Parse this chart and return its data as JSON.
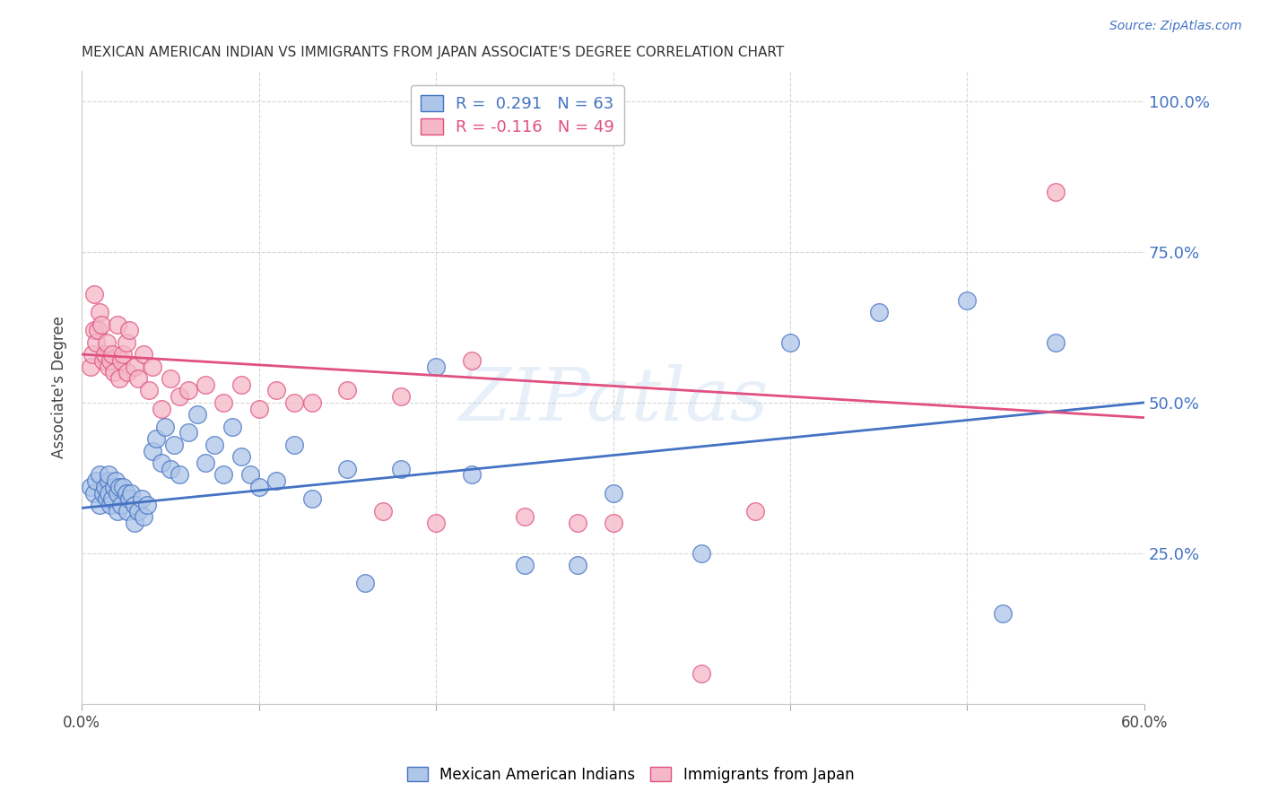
{
  "title": "MEXICAN AMERICAN INDIAN VS IMMIGRANTS FROM JAPAN ASSOCIATE'S DEGREE CORRELATION CHART",
  "source": "Source: ZipAtlas.com",
  "ylabel": "Associate's Degree",
  "xmin": 0.0,
  "xmax": 0.6,
  "ymin": 0.0,
  "ymax": 1.05,
  "yticks": [
    0.0,
    0.25,
    0.5,
    0.75,
    1.0
  ],
  "ytick_labels": [
    "",
    "25.0%",
    "50.0%",
    "75.0%",
    "100.0%"
  ],
  "xticks": [
    0.0,
    0.1,
    0.2,
    0.3,
    0.4,
    0.5,
    0.6
  ],
  "xtick_labels": [
    "0.0%",
    "",
    "",
    "",
    "",
    "",
    "60.0%"
  ],
  "legend_line1": "R =  0.291   N = 63",
  "legend_line2": "R = -0.116   N = 49",
  "blue_color": "#4472c4",
  "pink_color": "#e05080",
  "blue_face": "#aec6e8",
  "pink_face": "#f4b8c8",
  "watermark": "ZIPatlas",
  "blue_x": [
    0.005,
    0.007,
    0.008,
    0.01,
    0.01,
    0.012,
    0.013,
    0.014,
    0.015,
    0.015,
    0.015,
    0.016,
    0.017,
    0.018,
    0.019,
    0.02,
    0.02,
    0.021,
    0.022,
    0.023,
    0.025,
    0.026,
    0.027,
    0.028,
    0.03,
    0.03,
    0.032,
    0.034,
    0.035,
    0.037,
    0.04,
    0.042,
    0.045,
    0.047,
    0.05,
    0.052,
    0.055,
    0.06,
    0.065,
    0.07,
    0.075,
    0.08,
    0.085,
    0.09,
    0.095,
    0.1,
    0.11,
    0.12,
    0.13,
    0.15,
    0.16,
    0.18,
    0.2,
    0.22,
    0.25,
    0.28,
    0.3,
    0.35,
    0.4,
    0.45,
    0.5,
    0.52,
    0.55
  ],
  "blue_y": [
    0.36,
    0.35,
    0.37,
    0.33,
    0.38,
    0.35,
    0.36,
    0.34,
    0.37,
    0.35,
    0.38,
    0.33,
    0.34,
    0.36,
    0.37,
    0.32,
    0.35,
    0.36,
    0.33,
    0.36,
    0.35,
    0.32,
    0.34,
    0.35,
    0.3,
    0.33,
    0.32,
    0.34,
    0.31,
    0.33,
    0.42,
    0.44,
    0.4,
    0.46,
    0.39,
    0.43,
    0.38,
    0.45,
    0.48,
    0.4,
    0.43,
    0.38,
    0.46,
    0.41,
    0.38,
    0.36,
    0.37,
    0.43,
    0.34,
    0.39,
    0.2,
    0.39,
    0.56,
    0.38,
    0.23,
    0.23,
    0.35,
    0.25,
    0.6,
    0.65,
    0.67,
    0.15,
    0.6
  ],
  "pink_x": [
    0.005,
    0.006,
    0.007,
    0.007,
    0.008,
    0.009,
    0.01,
    0.011,
    0.012,
    0.013,
    0.014,
    0.015,
    0.016,
    0.017,
    0.018,
    0.02,
    0.021,
    0.022,
    0.023,
    0.025,
    0.026,
    0.027,
    0.03,
    0.032,
    0.035,
    0.038,
    0.04,
    0.045,
    0.05,
    0.055,
    0.06,
    0.07,
    0.08,
    0.09,
    0.1,
    0.11,
    0.12,
    0.13,
    0.15,
    0.17,
    0.18,
    0.2,
    0.22,
    0.25,
    0.28,
    0.3,
    0.35,
    0.38,
    0.55
  ],
  "pink_y": [
    0.56,
    0.58,
    0.62,
    0.68,
    0.6,
    0.62,
    0.65,
    0.63,
    0.57,
    0.58,
    0.6,
    0.56,
    0.57,
    0.58,
    0.55,
    0.63,
    0.54,
    0.57,
    0.58,
    0.6,
    0.55,
    0.62,
    0.56,
    0.54,
    0.58,
    0.52,
    0.56,
    0.49,
    0.54,
    0.51,
    0.52,
    0.53,
    0.5,
    0.53,
    0.49,
    0.52,
    0.5,
    0.5,
    0.52,
    0.32,
    0.51,
    0.3,
    0.57,
    0.31,
    0.3,
    0.3,
    0.05,
    0.32,
    0.85
  ],
  "blue_line_x": [
    0.0,
    0.6
  ],
  "blue_line_y": [
    0.325,
    0.5
  ],
  "pink_line_x": [
    0.0,
    0.6
  ],
  "pink_line_y": [
    0.58,
    0.475
  ],
  "right_axis_color": "#4472c4",
  "grid_color": "#cccccc",
  "bg_color": "#ffffff"
}
